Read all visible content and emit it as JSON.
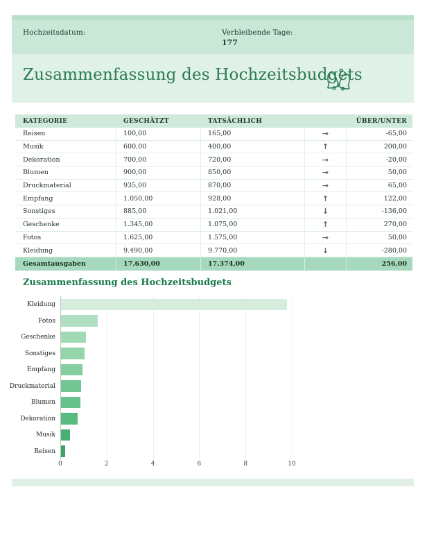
{
  "header": {
    "date_label": "Hochzeitsdatum:",
    "date_value": "",
    "days_label": "Verbleibende Tage:",
    "days_value": "177"
  },
  "title": "Zusammenfassung des Hochzeitsbudgets",
  "title_icon": "wedding-bells-icon",
  "table": {
    "columns": [
      "KATEGORIE",
      "GESCHÄTZT",
      "TATSÄCHLICH",
      "",
      "ÜBER/UNTER"
    ],
    "trend_icons": {
      "up": "↑",
      "right": "→",
      "down": "↓"
    },
    "rows": [
      {
        "kategorie": "Reisen",
        "geschaetzt": "100,00",
        "tatsaechlich": "165,00",
        "trend": "right",
        "ueber_unter": "-65,00"
      },
      {
        "kategorie": "Musik",
        "geschaetzt": "600,00",
        "tatsaechlich": "400,00",
        "trend": "up",
        "ueber_unter": "200,00"
      },
      {
        "kategorie": "Dekoration",
        "geschaetzt": "700,00",
        "tatsaechlich": "720,00",
        "trend": "right",
        "ueber_unter": "-20,00"
      },
      {
        "kategorie": "Blumen",
        "geschaetzt": "900,00",
        "tatsaechlich": "850,00",
        "trend": "right",
        "ueber_unter": "50,00"
      },
      {
        "kategorie": "Druckmaterial",
        "geschaetzt": "935,00",
        "tatsaechlich": "870,00",
        "trend": "right",
        "ueber_unter": "65,00"
      },
      {
        "kategorie": "Empfang",
        "geschaetzt": "1.050,00",
        "tatsaechlich": "928,00",
        "trend": "up",
        "ueber_unter": "122,00"
      },
      {
        "kategorie": "Sonstiges",
        "geschaetzt": "885,00",
        "tatsaechlich": "1.021,00",
        "trend": "down",
        "ueber_unter": "-136,00"
      },
      {
        "kategorie": "Geschenke",
        "geschaetzt": "1.345,00",
        "tatsaechlich": "1.075,00",
        "trend": "up",
        "ueber_unter": "270,00"
      },
      {
        "kategorie": "Fotos",
        "geschaetzt": "1.625,00",
        "tatsaechlich": "1.575,00",
        "trend": "right",
        "ueber_unter": "50,00"
      },
      {
        "kategorie": "Kleidung",
        "geschaetzt": "9.490,00",
        "tatsaechlich": "9.770,00",
        "trend": "down",
        "ueber_unter": "-280,00"
      }
    ],
    "total": {
      "kategorie": "Gesamtausgaben",
      "geschaetzt": "17.630,00",
      "tatsaechlich": "17.374,00",
      "ueber_unter": "256,00"
    }
  },
  "chart_data": {
    "type": "bar",
    "orientation": "horizontal",
    "title": "Zusammenfassung des Hochzeitsbudgets",
    "categories": [
      "Kleidung",
      "Fotos",
      "Geschenke",
      "Sonstiges",
      "Empfang",
      "Druckmaterial",
      "Blumen",
      "Dekoration",
      "Musik",
      "Reisen"
    ],
    "values": [
      9.77,
      1.575,
      1.075,
      1.021,
      0.928,
      0.87,
      0.85,
      0.72,
      0.4,
      0.165
    ],
    "x_ticks": [
      0,
      2,
      4,
      6,
      8,
      10
    ],
    "xlim": [
      0,
      12
    ],
    "grid": true,
    "legend": "none",
    "bar_colors": [
      "#d6eddd",
      "#b0dfc2",
      "#a3dab6",
      "#95d5ac",
      "#83cd9e",
      "#74c794",
      "#66c18a",
      "#58bb80",
      "#47b173",
      "#3ca566"
    ]
  },
  "colors": {
    "accent_dark_green": "#2c7a55",
    "band_green": "#cbe7d7",
    "band_light_green": "#e0f1e7",
    "table_header_green": "#cfe9da",
    "total_row_green": "#a5d8bc",
    "arrow_gray": "#5d6561"
  }
}
